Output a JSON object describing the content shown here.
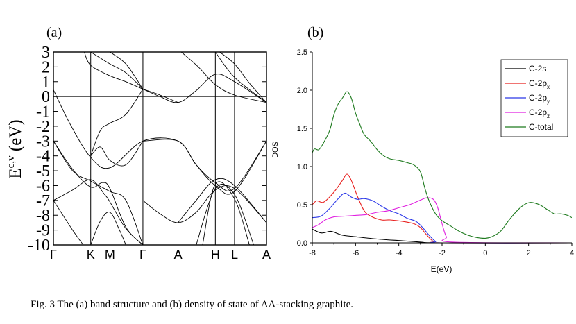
{
  "caption": "Fig. 3  The (a) band structure and (b) density of state of AA-stacking graphite.",
  "chart_data": [
    {
      "type": "line",
      "panel_label": "(a)",
      "title": "",
      "ylabel_main": "E",
      "ylabel_sup": "c,v",
      "ylabel_suffix": " (eV)",
      "ylim": [
        -10,
        3
      ],
      "y_ticks": [
        3,
        2,
        1,
        0,
        -1,
        -2,
        -3,
        -4,
        -5,
        -6,
        -7,
        -8,
        -9,
        -10
      ],
      "y_tick_labels": [
        "3",
        "2",
        "1",
        "0",
        "-1",
        "-2",
        "-3",
        "-4",
        "-5",
        "-6",
        "-7",
        "-8",
        "-9",
        "-10"
      ],
      "k_points": [
        {
          "label": "Γ",
          "x": 0.0
        },
        {
          "label": "K",
          "x": 0.175
        },
        {
          "label": "M",
          "x": 0.265
        },
        {
          "label": "Γ",
          "x": 0.42
        },
        {
          "label": "A",
          "x": 0.585
        },
        {
          "label": "H",
          "x": 0.76
        },
        {
          "label": "L",
          "x": 0.85
        },
        {
          "label": "A",
          "x": 1.0
        }
      ],
      "fermi_level": 0,
      "series": [
        {
          "name": "band-1",
          "points": [
            [
              0,
              0.45
            ],
            [
              0.08,
              -1.9
            ],
            [
              0.175,
              -4.1
            ],
            [
              0.265,
              -4.8
            ],
            [
              0.42,
              -3.0
            ],
            [
              0.585,
              -3.0
            ],
            [
              0.67,
              -4.6
            ],
            [
              0.76,
              -6.0
            ],
            [
              0.85,
              -6.4
            ],
            [
              1.0,
              -3.0
            ]
          ]
        },
        {
          "name": "band-2",
          "points": [
            [
              0,
              -3.0
            ],
            [
              0.09,
              -4.9
            ],
            [
              0.175,
              -6.1
            ],
            [
              0.23,
              -5.8
            ],
            [
              0.265,
              -6.2
            ],
            [
              0.34,
              -8.8
            ],
            [
              0.42,
              -10.0
            ]
          ]
        },
        {
          "name": "band-3",
          "points": [
            [
              0,
              -3.0
            ],
            [
              0.09,
              -5.0
            ],
            [
              0.175,
              -5.7
            ],
            [
              0.265,
              -6.4
            ],
            [
              0.34,
              -7.0
            ],
            [
              0.42,
              -10.0
            ]
          ]
        },
        {
          "name": "band-4",
          "points": [
            [
              0,
              -7.0
            ],
            [
              0.09,
              -6.3
            ],
            [
              0.175,
              -5.6
            ],
            [
              0.24,
              -6.6
            ],
            [
              0.265,
              -7.1
            ],
            [
              0.34,
              -8.9
            ],
            [
              0.42,
              -10.0
            ]
          ]
        },
        {
          "name": "band-5",
          "points": [
            [
              0,
              -7.0
            ],
            [
              0.09,
              -9.0
            ],
            [
              0.14,
              -10.0
            ]
          ]
        },
        {
          "name": "band-6",
          "points": [
            [
              0.175,
              -10.0
            ],
            [
              0.22,
              -8.4
            ],
            [
              0.265,
              -7.8
            ],
            [
              0.31,
              -9.0
            ],
            [
              0.34,
              -10.0
            ]
          ]
        },
        {
          "name": "band-7",
          "points": [
            [
              0.175,
              -4.0
            ],
            [
              0.22,
              -2.3
            ],
            [
              0.265,
              -1.8
            ],
            [
              0.34,
              -1.2
            ],
            [
              0.42,
              0.5
            ]
          ]
        },
        {
          "name": "band-8",
          "points": [
            [
              0.175,
              -4.0
            ],
            [
              0.22,
              -3.4
            ],
            [
              0.265,
              -4.3
            ],
            [
              0.34,
              -4.6
            ],
            [
              0.42,
              -3.0
            ]
          ]
        },
        {
          "name": "band-9",
          "points": [
            [
              0.175,
              3.0
            ],
            [
              0.22,
              2.6
            ],
            [
              0.265,
              2.2
            ],
            [
              0.34,
              1.6
            ],
            [
              0.42,
              0.5
            ]
          ]
        },
        {
          "name": "band-10",
          "points": [
            [
              0.145,
              3.0
            ],
            [
              0.175,
              2.1
            ],
            [
              0.265,
              1.4
            ],
            [
              0.34,
              1.0
            ],
            [
              0.42,
              0.5
            ]
          ]
        },
        {
          "name": "band-11",
          "points": [
            [
              0.265,
              3.0
            ],
            [
              0.34,
              2.2
            ],
            [
              0.42,
              0.5
            ]
          ]
        },
        {
          "name": "band-12",
          "points": [
            [
              0.42,
              0.5
            ],
            [
              0.5,
              0.0
            ],
            [
              0.585,
              -0.4
            ],
            [
              0.67,
              0.4
            ],
            [
              0.76,
              1.5
            ],
            [
              0.85,
              1.0
            ],
            [
              1.0,
              -0.4
            ]
          ]
        },
        {
          "name": "band-13",
          "points": [
            [
              0.42,
              0.5
            ],
            [
              0.5,
              0.1
            ],
            [
              0.585,
              -0.4
            ]
          ]
        },
        {
          "name": "band-14",
          "points": [
            [
              0.42,
              -3.0
            ],
            [
              0.585,
              -3.0
            ],
            [
              0.67,
              -4.6
            ],
            [
              0.76,
              -5.8
            ],
            [
              0.85,
              -6.2
            ],
            [
              1.0,
              -3.0
            ]
          ]
        },
        {
          "name": "band-15",
          "points": [
            [
              0.42,
              -7.0
            ],
            [
              0.5,
              -7.9
            ],
            [
              0.585,
              -8.5
            ],
            [
              0.67,
              -7.8
            ],
            [
              0.76,
              -6.3
            ],
            [
              0.85,
              -6.2
            ],
            [
              1.0,
              -8.5
            ]
          ]
        },
        {
          "name": "band-16",
          "points": [
            [
              0.585,
              -8.5
            ],
            [
              0.67,
              -7.0
            ],
            [
              0.76,
              -5.6
            ],
            [
              0.85,
              -6.0
            ],
            [
              1.0,
              -8.5
            ]
          ]
        },
        {
          "name": "band-17",
          "points": [
            [
              0.67,
              -10.0
            ],
            [
              0.76,
              -6.2
            ],
            [
              0.85,
              -6.6
            ],
            [
              0.94,
              -10.0
            ]
          ]
        },
        {
          "name": "band-18",
          "points": [
            [
              0.7,
              -10.0
            ],
            [
              0.76,
              -5.9
            ],
            [
              0.85,
              -6.9
            ],
            [
              0.92,
              -10.0
            ]
          ]
        },
        {
          "name": "band-19",
          "points": [
            [
              0.76,
              3.0
            ],
            [
              0.85,
              1.3
            ],
            [
              1.0,
              -0.4
            ]
          ]
        },
        {
          "name": "band-20",
          "points": [
            [
              0.6,
              3.0
            ],
            [
              0.68,
              2.0
            ],
            [
              0.76,
              0.8
            ],
            [
              0.85,
              0.1
            ],
            [
              1.0,
              -0.4
            ]
          ]
        },
        {
          "name": "band-21",
          "points": [
            [
              0.78,
              3.0
            ],
            [
              0.85,
              2.2
            ],
            [
              0.92,
              0.9
            ],
            [
              1.0,
              -0.4
            ]
          ]
        }
      ]
    },
    {
      "type": "line",
      "panel_label": "(b)",
      "title": "",
      "xlabel": "E(eV)",
      "ylabel": "DOS",
      "xlim": [
        -8,
        4
      ],
      "ylim": [
        0,
        2.5
      ],
      "x_ticks": [
        -8,
        -6,
        -4,
        -2,
        0,
        2,
        4
      ],
      "x_tick_labels": [
        "-8",
        "-6",
        "-4",
        "-2",
        "0",
        "2",
        "4"
      ],
      "y_ticks": [
        0,
        0.5,
        1.0,
        1.5,
        2.0,
        2.5
      ],
      "y_tick_labels": [
        "0.0",
        "0.5",
        "1.0",
        "1.5",
        "2.0",
        "2.5"
      ],
      "legend_position": "top-right",
      "series": [
        {
          "name": "C-2s",
          "label_main": "C-2s",
          "label_sub": "",
          "color": "#000000",
          "points": [
            [
              -8,
              0.18
            ],
            [
              -7.6,
              0.13
            ],
            [
              -7.2,
              0.15
            ],
            [
              -7.0,
              0.14
            ],
            [
              -6.6,
              0.1
            ],
            [
              -6.0,
              0.08
            ],
            [
              -5.0,
              0.05
            ],
            [
              -4.0,
              0.03
            ],
            [
              -3.0,
              0.01
            ],
            [
              -2.0,
              0.0
            ],
            [
              4,
              0.0
            ]
          ]
        },
        {
          "name": "C-2px",
          "label_main": "C-2p",
          "label_sub": "x",
          "color": "#e8201e",
          "points": [
            [
              -8,
              0.5
            ],
            [
              -7.8,
              0.55
            ],
            [
              -7.5,
              0.53
            ],
            [
              -7.2,
              0.6
            ],
            [
              -6.9,
              0.7
            ],
            [
              -6.6,
              0.82
            ],
            [
              -6.4,
              0.9
            ],
            [
              -6.2,
              0.82
            ],
            [
              -5.9,
              0.6
            ],
            [
              -5.6,
              0.42
            ],
            [
              -5.3,
              0.35
            ],
            [
              -4.8,
              0.3
            ],
            [
              -4.4,
              0.3
            ],
            [
              -3.8,
              0.28
            ],
            [
              -3.3,
              0.25
            ],
            [
              -3.0,
              0.2
            ],
            [
              -2.7,
              0.1
            ],
            [
              -2.4,
              0.02
            ],
            [
              -2.0,
              0.0
            ],
            [
              4,
              0.0
            ]
          ]
        },
        {
          "name": "C-2py",
          "label_main": "C-2p",
          "label_sub": "y",
          "color": "#2a37e8",
          "points": [
            [
              -8,
              0.33
            ],
            [
              -7.6,
              0.35
            ],
            [
              -7.2,
              0.45
            ],
            [
              -6.8,
              0.58
            ],
            [
              -6.5,
              0.65
            ],
            [
              -6.2,
              0.6
            ],
            [
              -5.9,
              0.57
            ],
            [
              -5.6,
              0.58
            ],
            [
              -5.2,
              0.55
            ],
            [
              -4.8,
              0.48
            ],
            [
              -4.4,
              0.42
            ],
            [
              -4.0,
              0.38
            ],
            [
              -3.6,
              0.32
            ],
            [
              -3.2,
              0.28
            ],
            [
              -2.9,
              0.2
            ],
            [
              -2.6,
              0.1
            ],
            [
              -2.3,
              0.02
            ],
            [
              -2.0,
              0.0
            ],
            [
              4,
              0.0
            ]
          ]
        },
        {
          "name": "C-2pz",
          "label_main": "C-2p",
          "label_sub": "z",
          "color": "#e020e0",
          "points": [
            [
              -8,
              0.2
            ],
            [
              -7.7,
              0.24
            ],
            [
              -7.4,
              0.3
            ],
            [
              -7.0,
              0.34
            ],
            [
              -6.5,
              0.35
            ],
            [
              -6.0,
              0.36
            ],
            [
              -5.5,
              0.37
            ],
            [
              -5.0,
              0.4
            ],
            [
              -4.5,
              0.42
            ],
            [
              -4.0,
              0.46
            ],
            [
              -3.5,
              0.5
            ],
            [
              -3.0,
              0.56
            ],
            [
              -2.7,
              0.59
            ],
            [
              -2.4,
              0.57
            ],
            [
              -2.2,
              0.46
            ],
            [
              -2.0,
              0.25
            ],
            [
              -1.8,
              0.08
            ],
            [
              -1.5,
              0.01
            ],
            [
              4,
              0.0
            ]
          ]
        },
        {
          "name": "C-total",
          "label_main": "C-total",
          "label_sub": "",
          "color": "#1e7a1e",
          "points": [
            [
              -8,
              1.18
            ],
            [
              -7.9,
              1.23
            ],
            [
              -7.7,
              1.22
            ],
            [
              -7.5,
              1.3
            ],
            [
              -7.2,
              1.47
            ],
            [
              -7.0,
              1.68
            ],
            [
              -6.8,
              1.82
            ],
            [
              -6.6,
              1.9
            ],
            [
              -6.4,
              1.98
            ],
            [
              -6.2,
              1.9
            ],
            [
              -6.0,
              1.7
            ],
            [
              -5.8,
              1.55
            ],
            [
              -5.6,
              1.42
            ],
            [
              -5.3,
              1.33
            ],
            [
              -5.0,
              1.22
            ],
            [
              -4.7,
              1.14
            ],
            [
              -4.4,
              1.1
            ],
            [
              -4.0,
              1.08
            ],
            [
              -3.6,
              1.05
            ],
            [
              -3.3,
              1.02
            ],
            [
              -3.0,
              0.93
            ],
            [
              -2.8,
              0.72
            ],
            [
              -2.6,
              0.55
            ],
            [
              -2.3,
              0.38
            ],
            [
              -2.0,
              0.29
            ],
            [
              -1.6,
              0.22
            ],
            [
              -1.2,
              0.15
            ],
            [
              -0.8,
              0.1
            ],
            [
              -0.4,
              0.07
            ],
            [
              0,
              0.06
            ],
            [
              0.3,
              0.08
            ],
            [
              0.7,
              0.15
            ],
            [
              1.1,
              0.3
            ],
            [
              1.5,
              0.43
            ],
            [
              1.8,
              0.5
            ],
            [
              2.1,
              0.53
            ],
            [
              2.5,
              0.5
            ],
            [
              2.9,
              0.43
            ],
            [
              3.2,
              0.38
            ],
            [
              3.5,
              0.38
            ],
            [
              3.8,
              0.36
            ],
            [
              4.0,
              0.33
            ]
          ]
        }
      ]
    }
  ]
}
